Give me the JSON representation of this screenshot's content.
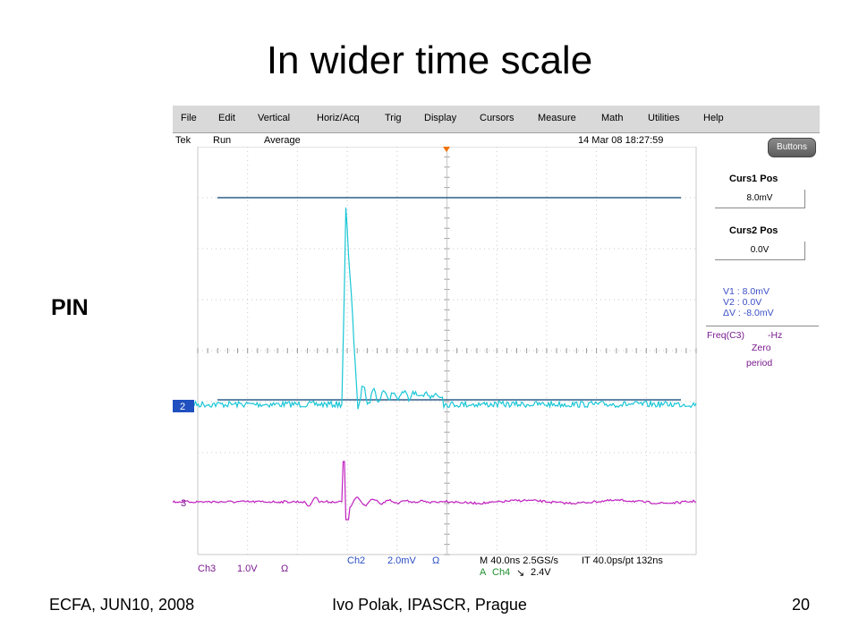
{
  "slide": {
    "title": "In wider time scale",
    "side_label": "PIN",
    "footer_left": "ECFA, JUN10, 2008",
    "footer_center": "Ivo Polak, IPASCR, Prague",
    "page_number": "20"
  },
  "menu": [
    "File",
    "Edit",
    "Vertical",
    "Horiz/Acq",
    "Trig",
    "Display",
    "Cursors",
    "Measure",
    "Math",
    "Utilities",
    "Help"
  ],
  "status": {
    "brand": "Tek",
    "run": "Run",
    "mode": "Average",
    "datetime": "14 Mar 08 18:27:59"
  },
  "panel": {
    "buttons_label": "Buttons",
    "curs1_label": "Curs1 Pos",
    "curs1_value": "8.0mV",
    "curs2_label": "Curs2 Pos",
    "curs2_value": "0.0V",
    "v1": "V1 :   8.0mV",
    "v2": "V2 :   0.0V",
    "dv": "ΔV :   -8.0mV",
    "freq_label": "Freq(C3)",
    "freq_value": "-Hz",
    "freq_note1": "Zero",
    "freq_note2": "period"
  },
  "markers": {
    "ch2": "2",
    "ch3": "3"
  },
  "readout": {
    "ch3": "Ch3",
    "ch3_scale": "1.0V",
    "ch3_coupling": "Ω",
    "ch2": "Ch2",
    "ch2_scale": "2.0mV",
    "ch2_coupling": "Ω",
    "horiz": "M 40.0ns 2.5GS/s",
    "it": "IT 40.0ps/pt 132ns",
    "trig_a": "A",
    "trig_src": "Ch4",
    "trig_slope": "↘",
    "trig_level": "2.4V"
  },
  "colors": {
    "ch2_trace": "#19c6d6",
    "ch3_trace": "#c020c0",
    "cursor": "#2e5f8a",
    "grid": "#c8c8c8"
  }
}
